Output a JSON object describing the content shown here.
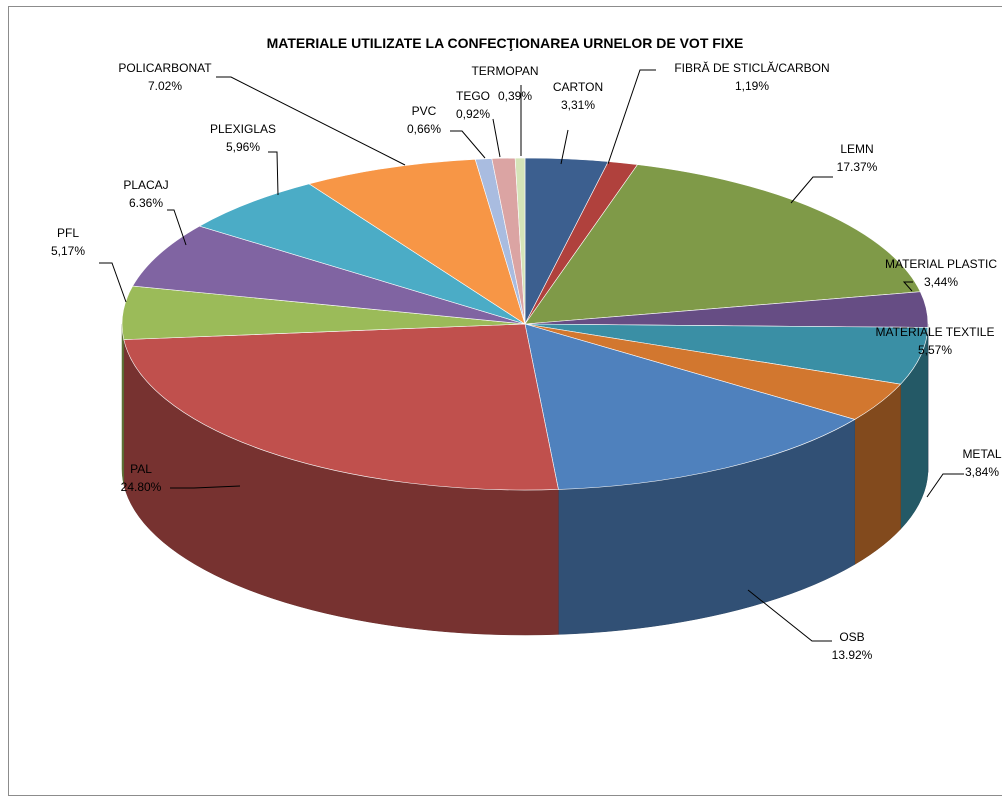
{
  "chart_data": {
    "type": "pie",
    "title": "MATERIALE UTILIZATE LA CONFECŢIONAREA URNELOR DE VOT FIXE",
    "slices": [
      {
        "name": "CARTON",
        "value_label": "3,31%",
        "value": 3.31,
        "color": "#3c5f8f"
      },
      {
        "name": "FIBRĂ DE STICLĂ/CARBON",
        "value_label": "1,19%",
        "value": 1.19,
        "color": "#b0413d"
      },
      {
        "name": "LEMN",
        "value_label": "17.37%",
        "value": 17.37,
        "color": "#7f9a48"
      },
      {
        "name": "MATERIAL PLASTIC",
        "value_label": "3,44%",
        "value": 3.44,
        "color": "#664d84"
      },
      {
        "name": "MATERIALE TEXTILE",
        "value_label": "5,57%",
        "value": 5.57,
        "color": "#3a8fa5"
      },
      {
        "name": "METAL",
        "value_label": "3,84%",
        "value": 3.84,
        "color": "#d2772f"
      },
      {
        "name": "OSB",
        "value_label": "13.92%",
        "value": 13.92,
        "color": "#4f81bd"
      },
      {
        "name": "PAL",
        "value_label": "24.80%",
        "value": 24.8,
        "color": "#c0504d"
      },
      {
        "name": "PFL",
        "value_label": "5,17%",
        "value": 5.17,
        "color": "#9bbb59"
      },
      {
        "name": "PLACAJ",
        "value_label": "6.36%",
        "value": 6.36,
        "color": "#8064a2"
      },
      {
        "name": "PLEXIGLAS",
        "value_label": "5,96%",
        "value": 5.96,
        "color": "#4bacc6"
      },
      {
        "name": "POLICARBONAT",
        "value_label": "7.02%",
        "value": 7.02,
        "color": "#f79646"
      },
      {
        "name": "PVC",
        "value_label": "0,66%",
        "value": 0.66,
        "color": "#a9bce0"
      },
      {
        "name": "TEGO",
        "value_label": "0,92%",
        "value": 0.92,
        "color": "#dba4a3"
      },
      {
        "name": "TERMOPAN",
        "value_label": "0,39%",
        "value": 0.39,
        "color": "#d5e4b8"
      }
    ]
  }
}
